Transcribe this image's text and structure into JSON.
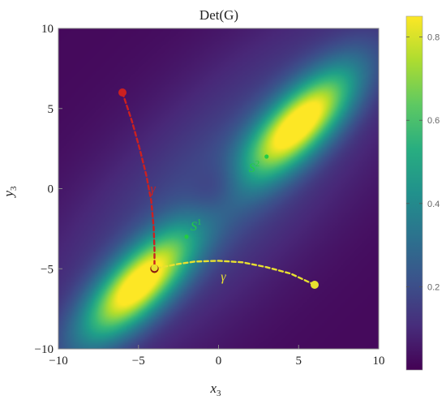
{
  "chart_data": {
    "type": "heatmap",
    "title": "Det(G)",
    "xlabel": "x",
    "xlabel_sub": "3",
    "ylabel": "y",
    "ylabel_sub": "3",
    "xlim": [
      -10,
      10
    ],
    "ylim": [
      -10,
      10
    ],
    "x_ticks": [
      -10,
      -5,
      0,
      5,
      10
    ],
    "y_ticks": [
      -10,
      -5,
      0,
      5,
      10
    ],
    "colorbar": {
      "range": [
        0.0,
        0.85
      ],
      "ticks": [
        0.2,
        0.4,
        0.6,
        0.8
      ],
      "colormap": "viridis"
    },
    "peaks": [
      {
        "x": 5.0,
        "y": 4.0,
        "value": 0.82
      },
      {
        "x": -5.0,
        "y": -6.0,
        "value": 0.82
      }
    ],
    "curves": [
      {
        "name": "γ",
        "color": "#e8e030",
        "start": {
          "x": 6.0,
          "y": -6.0
        },
        "end": {
          "x": -4.0,
          "y": -5.0
        },
        "points": [
          [
            6.0,
            -6.0
          ],
          [
            4.5,
            -5.3
          ],
          [
            3.0,
            -4.9
          ],
          [
            1.5,
            -4.6
          ],
          [
            0.0,
            -4.5
          ],
          [
            -1.5,
            -4.55
          ],
          [
            -2.5,
            -4.7
          ],
          [
            -3.3,
            -4.85
          ],
          [
            -4.0,
            -5.0
          ]
        ],
        "label_position": [
          0.3,
          -5.5
        ]
      },
      {
        "name": "γ",
        "color": "#cc2020",
        "start": {
          "x": -6.0,
          "y": 6.0
        },
        "end": {
          "x": -4.0,
          "y": -5.0
        },
        "points": [
          [
            -6.0,
            6.0
          ],
          [
            -5.4,
            4.2
          ],
          [
            -4.9,
            2.4
          ],
          [
            -4.5,
            0.8
          ],
          [
            -4.2,
            -0.8
          ],
          [
            -4.05,
            -2.4
          ],
          [
            -4.0,
            -3.8
          ],
          [
            -4.0,
            -5.0
          ]
        ],
        "label_position": [
          -4.1,
          0.0
        ]
      }
    ],
    "points": [
      {
        "name": "S",
        "superscript": "1",
        "x": -2.0,
        "y": -3.0,
        "color": "#22cc44"
      },
      {
        "name": "S",
        "superscript": "2",
        "x": 3.0,
        "y": 2.0,
        "color": "#22cc44"
      }
    ]
  }
}
